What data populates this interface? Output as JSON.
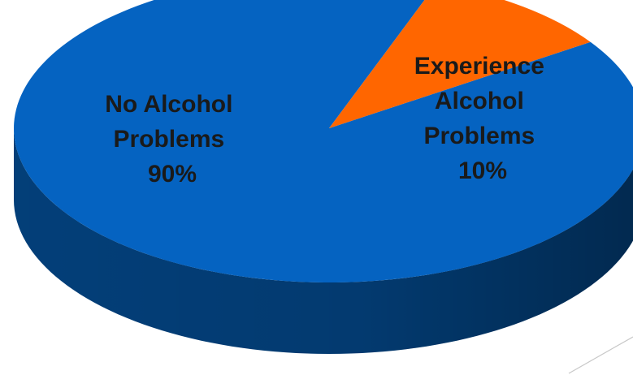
{
  "chart_data": {
    "type": "pie",
    "style": "3d",
    "start_angle_deg": -34,
    "series": [
      {
        "name": "No Alcohol Problems",
        "value": 90,
        "value_label": "90%",
        "label_lines": [
          "No Alcohol",
          "Problems",
          "90%"
        ],
        "color": "#0563C1",
        "side_color": "#03427F"
      },
      {
        "name": "Experience Alcohol Problems",
        "value": 10,
        "value_label": "10%",
        "label_lines": [
          "Experience",
          "Alcohol",
          "Problems",
          "10%"
        ],
        "color": "#FF6600",
        "side_color": "#7A3000"
      }
    ]
  }
}
